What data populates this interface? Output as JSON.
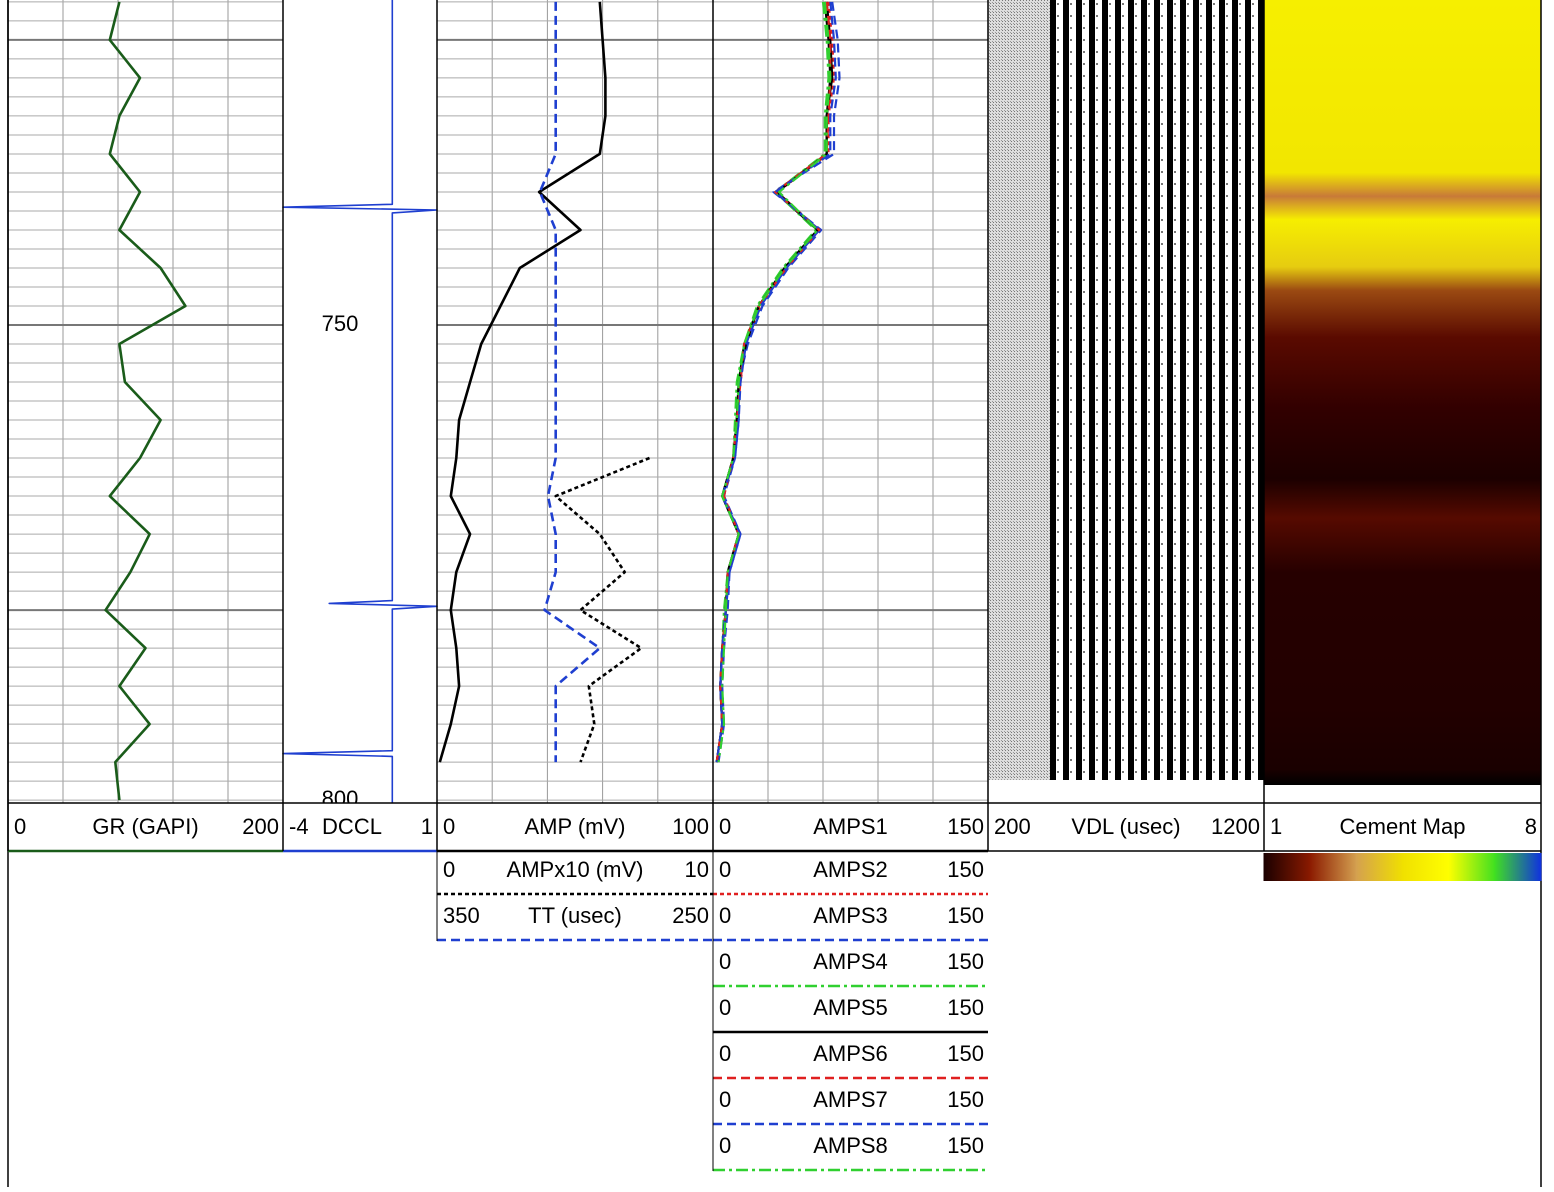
{
  "chart_data": [
    {
      "type": "line",
      "x": [
        716,
        720,
        724,
        728,
        732,
        736,
        740,
        744,
        748,
        752,
        756,
        760,
        764,
        768,
        772,
        776,
        780,
        784,
        788,
        792,
        796,
        800
      ],
      "ylim": [
        715.8,
        800.3
      ],
      "grid": true,
      "xticks": [
        40,
        80,
        120,
        160
      ],
      "ygrid_step": 2,
      "ygrid_major": [
        720,
        750,
        780
      ],
      "series": [
        {
          "name": "GR (GAPI)",
          "color": "#1a5c1a",
          "dash": "solid",
          "xlim": [
            0,
            200
          ],
          "values": [
            81,
            74,
            96,
            81,
            74,
            96,
            81,
            111,
            129,
            81,
            85,
            111,
            96,
            74,
            103,
            89,
            71,
            100,
            81,
            103,
            78,
            81
          ]
        }
      ]
    },
    {
      "type": "line",
      "x": [
        715.8,
        737.3,
        737.6,
        737.9,
        738.2,
        779,
        779.3,
        779.6,
        779.9,
        794.8,
        795.1,
        795.4,
        800.3
      ],
      "ylim": [
        715.8,
        800.3
      ],
      "yticks": [
        750,
        800
      ],
      "series": [
        {
          "name": "DCCL",
          "color": "#1f3fd0",
          "dash": "solid",
          "xlim": [
            -4,
            1
          ],
          "values": [
            -0.45,
            -0.45,
            -4,
            1,
            -0.45,
            -0.45,
            -2.5,
            1,
            -0.45,
            -0.45,
            -4,
            -0.45,
            -0.45
          ]
        }
      ]
    },
    {
      "type": "line",
      "x": [
        716,
        720,
        724,
        728,
        732,
        736,
        740,
        744,
        748,
        752,
        756,
        760,
        764,
        768,
        772,
        776,
        780,
        784,
        788,
        792,
        796,
        800
      ],
      "ylim": [
        715.8,
        800.3
      ],
      "grid": true,
      "xticks": [
        20,
        40,
        60,
        80
      ],
      "ygrid_step": 2,
      "ygrid_major": [
        720,
        750,
        780
      ],
      "series": [
        {
          "name": "AMP (mV)",
          "color": "#000000",
          "dash": "solid",
          "xlim": [
            0,
            100
          ],
          "values": [
            59,
            60,
            61,
            61,
            59,
            37,
            52,
            30,
            23,
            16,
            12,
            8,
            7,
            5,
            12,
            7,
            5,
            7,
            8,
            5,
            1,
            null
          ]
        },
        {
          "name": "AMPx10 (mV)",
          "color": "#000000",
          "dash": "dotted",
          "xlim": [
            0,
            10
          ],
          "values": [
            null,
            null,
            null,
            null,
            null,
            null,
            null,
            null,
            null,
            null,
            null,
            null,
            7.7,
            4.3,
            5.9,
            6.8,
            5.2,
            7.4,
            5.5,
            5.7,
            5.2,
            null
          ]
        },
        {
          "name": "TT (usec)",
          "color": "#1f3fd0",
          "dash": "dashed",
          "xlim": [
            350,
            250
          ],
          "values": [
            307,
            307,
            307,
            307,
            307,
            312.7,
            307,
            307,
            307,
            307,
            307,
            307,
            307,
            309.8,
            307,
            307,
            311,
            291,
            307,
            307,
            307,
            null
          ]
        }
      ]
    },
    {
      "type": "line",
      "x": [
        716,
        720,
        724,
        728,
        732,
        736,
        740,
        744,
        748,
        752,
        756,
        760,
        764,
        768,
        772,
        776,
        780,
        784,
        788,
        792,
        796,
        800
      ],
      "ylim": [
        715.8,
        800.3
      ],
      "grid": true,
      "xticks": [
        30,
        60,
        90,
        120
      ],
      "ygrid_step": 2,
      "ygrid_major": [
        720,
        750,
        780
      ],
      "series": [
        {
          "name": "AMPS1",
          "color": "#000000",
          "dash": "solid",
          "xlim": [
            0,
            150
          ],
          "values": [
            61,
            63,
            64,
            62,
            62,
            34,
            57,
            39,
            25,
            17,
            14,
            13,
            11,
            5,
            14,
            8,
            7,
            5,
            4,
            5,
            2,
            null
          ]
        },
        {
          "name": "AMPS2",
          "color": "#e02020",
          "dash": "dotted",
          "xlim": [
            0,
            150
          ],
          "values": [
            63,
            65,
            66,
            63,
            63,
            35,
            58,
            40,
            26,
            18,
            15,
            13,
            11,
            5,
            15,
            8,
            7,
            5,
            4,
            5,
            2,
            null
          ]
        },
        {
          "name": "AMPS3",
          "color": "#1f3fd0",
          "dash": "dashed",
          "xlim": [
            0,
            150
          ],
          "values": [
            65,
            68,
            69,
            66,
            66,
            33,
            59,
            41,
            27,
            19,
            14,
            14,
            12,
            6,
            15,
            9,
            8,
            6,
            5,
            6,
            3,
            null
          ]
        },
        {
          "name": "AMPS4",
          "color": "#30d030",
          "dash": "dashdot",
          "xlim": [
            0,
            150
          ],
          "values": [
            60,
            62,
            63,
            61,
            61,
            34,
            56,
            38,
            24,
            17,
            13,
            12,
            11,
            5,
            14,
            8,
            6,
            5,
            4,
            5,
            2,
            null
          ]
        },
        {
          "name": "AMPS5",
          "color": "#000000",
          "dash": "solid",
          "xlim": [
            0,
            150
          ],
          "values": [
            62,
            64,
            65,
            62,
            62,
            35,
            57,
            39,
            25,
            18,
            14,
            13,
            11,
            5,
            14,
            8,
            7,
            5,
            4,
            5,
            2,
            null
          ]
        },
        {
          "name": "AMPS6",
          "color": "#e02020",
          "dash": "dashed",
          "xlim": [
            0,
            150
          ],
          "values": [
            62,
            64,
            64,
            63,
            62,
            34,
            58,
            40,
            25,
            17,
            15,
            13,
            11,
            6,
            14,
            8,
            7,
            5,
            4,
            5,
            2,
            null
          ]
        },
        {
          "name": "AMPS7",
          "color": "#1f3fd0",
          "dash": "dashed",
          "xlim": [
            0,
            150
          ],
          "values": [
            64,
            66,
            67,
            64,
            64,
            34,
            58,
            40,
            26,
            18,
            15,
            14,
            12,
            5,
            15,
            9,
            7,
            5,
            4,
            5,
            2,
            null
          ]
        },
        {
          "name": "AMPS8",
          "color": "#30d030",
          "dash": "dashdot",
          "xlim": [
            0,
            150
          ],
          "values": [
            61,
            63,
            64,
            62,
            62,
            36,
            57,
            39,
            25,
            17,
            14,
            13,
            11,
            5,
            14,
            8,
            7,
            6,
            5,
            6,
            3,
            null
          ]
        }
      ]
    },
    {
      "type": "image",
      "series": [
        {
          "name": "VDL (usec)",
          "xlim": [
            200,
            1200
          ]
        }
      ]
    },
    {
      "type": "image",
      "series": [
        {
          "name": "Cement Map",
          "xlim": [
            1,
            8
          ]
        }
      ],
      "colorscale": [
        "#1a0000",
        "#8b1a00",
        "#d4a050",
        "#f0e000",
        "#ffff00",
        "#40e020",
        "#1030e0"
      ]
    }
  ]
}
